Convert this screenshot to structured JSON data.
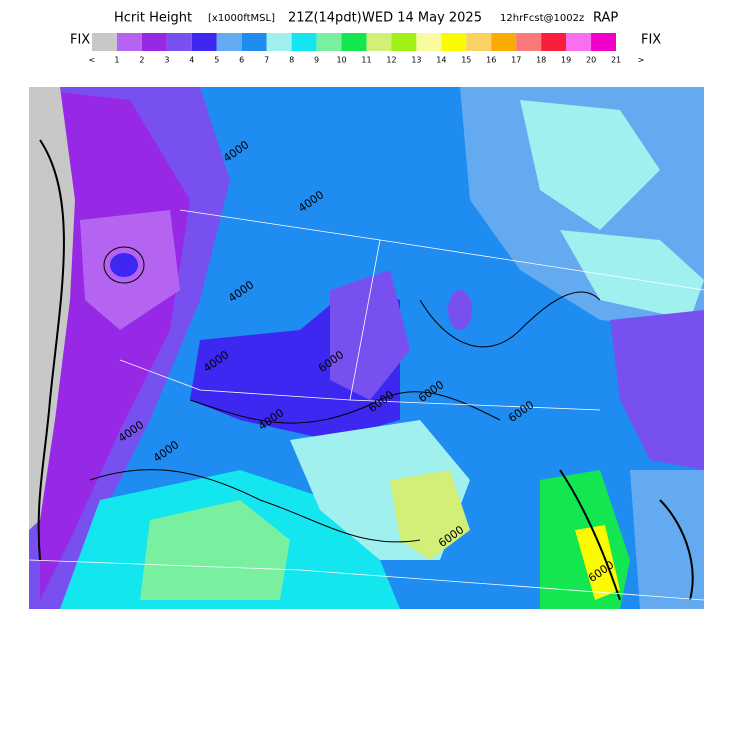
{
  "header": {
    "title": "Hcrit Height",
    "units": "[x1000ftMSL]",
    "valid_time": "21Z(14pdt)",
    "date": "WED 14 May 2025",
    "forecast": "12hrFcst@1002z",
    "model": "RAP"
  },
  "legend": {
    "left_label": "FIX",
    "right_label": "FIX",
    "colors": [
      "#c8c8c8",
      "#b464f0",
      "#9628e6",
      "#7850f0",
      "#3c28f0",
      "#64aaf0",
      "#1e8cf0",
      "#a0f0f0",
      "#14e6f0",
      "#78f0a0",
      "#14e650",
      "#d2f078",
      "#a0f014",
      "#fafaa0",
      "#fafa00",
      "#fad264",
      "#faaa00",
      "#fa7878",
      "#fa1e3c",
      "#fa6ef0",
      "#f000c8"
    ],
    "ticks": [
      "<",
      1,
      2,
      3,
      4,
      5,
      6,
      7,
      8,
      9,
      10,
      11,
      12,
      13,
      14,
      15,
      16,
      17,
      18,
      19,
      20,
      21,
      ">"
    ]
  },
  "map": {
    "contour_labels": [
      "4000",
      "4000",
      "4000",
      "4000",
      "4000",
      "4000",
      "4000",
      "6000",
      "6000",
      "6000",
      "6000",
      "6000",
      "6000"
    ]
  }
}
